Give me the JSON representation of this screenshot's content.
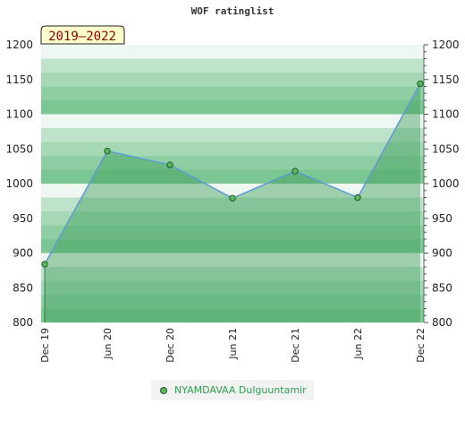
{
  "header": {
    "title": "WOF ratinglist"
  },
  "badge": {
    "text": "2019–2022"
  },
  "legend": {
    "label": "NYAMDAVAA Dulguuntamir"
  },
  "chart_data": {
    "type": "area",
    "title": "WOF ratinglist",
    "period": "2019–2022",
    "x": [
      "Dec 19",
      "Jun 20",
      "Dec 20",
      "Jun 21",
      "Dec 21",
      "Jun 22",
      "Dec 22"
    ],
    "series": [
      {
        "name": "NYAMDAVAA Dulguuntamir",
        "values": [
          884,
          1047,
          1027,
          979,
          1018,
          980,
          1144
        ]
      }
    ],
    "ylim": [
      800,
      1200
    ],
    "yticks": [
      800,
      850,
      900,
      950,
      1000,
      1050,
      1100,
      1150,
      1200
    ],
    "y_axis_both_sides": true,
    "legend_position": "bottom",
    "colors": {
      "line": "#5b9bd5",
      "fill": "#6bbf80",
      "point": "#5cb85c",
      "point_stroke": "#1e5a2a",
      "legend_text": "#2e9e4f"
    }
  }
}
